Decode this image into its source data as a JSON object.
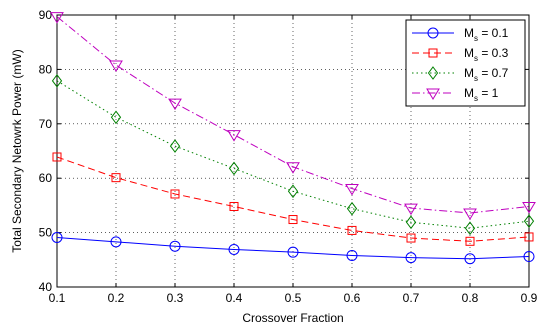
{
  "chart_data": {
    "type": "line",
    "title": "",
    "xlabel": "Crossover Fraction",
    "ylabel": "Total Secondary Netowrk Power (mW)",
    "x": [
      0.1,
      0.2,
      0.3,
      0.4,
      0.5,
      0.6,
      0.7,
      0.8,
      0.9
    ],
    "xlim": [
      0.1,
      0.9
    ],
    "ylim": [
      40,
      90
    ],
    "xticks": [
      "0.1",
      "0.2",
      "0.3",
      "0.4",
      "0.5",
      "0.6",
      "0.7",
      "0.8",
      "0.9"
    ],
    "yticks": [
      "40",
      "50",
      "60",
      "70",
      "80",
      "90"
    ],
    "grid": true,
    "legend_position": "top-right",
    "series": [
      {
        "legend_main": "M",
        "legend_sub": "s",
        "legend_rest": " = 0.1",
        "values": [
          49.1,
          48.3,
          47.5,
          46.9,
          46.4,
          45.8,
          45.4,
          45.2,
          45.6
        ],
        "color": "#0000ff",
        "dash": "solid",
        "marker": "circle"
      },
      {
        "legend_main": "M",
        "legend_sub": "s",
        "legend_rest": " = 0.3",
        "values": [
          63.9,
          60.1,
          57.1,
          54.8,
          52.4,
          50.4,
          49.0,
          48.4,
          49.2
        ],
        "color": "#ff0000",
        "dash": "dashed",
        "marker": "square"
      },
      {
        "legend_main": "M",
        "legend_sub": "s",
        "legend_rest": " = 0.7",
        "values": [
          77.9,
          71.2,
          65.9,
          61.8,
          57.6,
          54.4,
          51.9,
          50.8,
          52.1
        ],
        "color": "#008000",
        "dash": "dotted",
        "marker": "diamond"
      },
      {
        "legend_main": "M",
        "legend_sub": "s",
        "legend_rest": " = 1",
        "values": [
          89.7,
          80.8,
          73.8,
          68.0,
          62.1,
          58.1,
          54.5,
          53.6,
          54.8
        ],
        "color": "#bf00bf",
        "dash": "dashdot",
        "marker": "triangle-down"
      }
    ]
  }
}
